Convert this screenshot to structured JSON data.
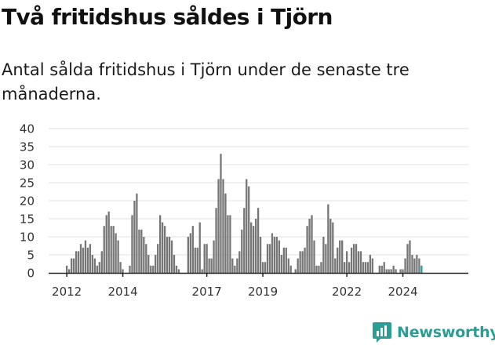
{
  "header": {
    "title": "Två fritidshus såldes i Tjörn",
    "subtitle": "Antal sålda fritidshus i Tjörn under de senaste tre månaderna."
  },
  "brand": {
    "name": "Newsworthy",
    "color": "#2a9d96",
    "icon": "newsworthy-chart-icon"
  },
  "colors": {
    "bar": "#767676",
    "highlight": "#2a9d96",
    "grid": "#e2e2e2",
    "axis": "#222222"
  },
  "chart_data": {
    "type": "bar",
    "ylim": [
      0,
      40
    ],
    "yticks": [
      "0",
      "5",
      "10",
      "15",
      "20",
      "25",
      "30",
      "35",
      "40"
    ],
    "xtick_labels": [
      {
        "label": "2012",
        "index": 0
      },
      {
        "label": "2014",
        "index": 24
      },
      {
        "label": "2017",
        "index": 60
      },
      {
        "label": "2019",
        "index": 84
      },
      {
        "label": "2022",
        "index": 120
      },
      {
        "label": "2024",
        "index": 144
      }
    ],
    "grid": true,
    "legend": "none",
    "values": [
      2,
      1,
      4,
      4,
      6,
      6,
      8,
      7,
      9,
      7,
      8,
      5,
      4,
      2,
      3,
      6,
      13,
      16,
      17,
      13,
      13,
      11,
      9,
      3,
      1,
      0,
      0,
      2,
      16,
      20,
      22,
      12,
      12,
      10,
      8,
      5,
      2,
      2,
      5,
      8,
      16,
      14,
      13,
      10,
      10,
      9,
      5,
      2,
      1,
      0,
      0,
      0,
      10,
      11,
      13,
      7,
      7,
      14,
      1,
      8,
      8,
      4,
      4,
      9,
      18,
      26,
      33,
      26,
      22,
      16,
      16,
      4,
      2,
      4,
      6,
      12,
      18,
      26,
      24,
      14,
      13,
      15,
      18,
      10,
      3,
      3,
      8,
      8,
      11,
      10,
      10,
      9,
      5,
      7,
      7,
      4,
      2,
      0,
      1,
      4,
      6,
      6,
      7,
      13,
      15,
      16,
      9,
      2,
      2,
      3,
      10,
      8,
      19,
      15,
      14,
      4,
      7,
      9,
      9,
      3,
      6,
      3,
      7,
      8,
      8,
      6,
      6,
      3,
      3,
      3,
      5,
      4,
      0,
      0,
      2,
      2,
      3,
      1,
      1,
      1,
      2,
      1,
      0,
      1,
      1,
      4,
      8,
      9,
      5,
      4,
      5,
      4,
      2
    ],
    "highlight_last": true,
    "annotation": {
      "text": "2",
      "index": 154
    }
  }
}
